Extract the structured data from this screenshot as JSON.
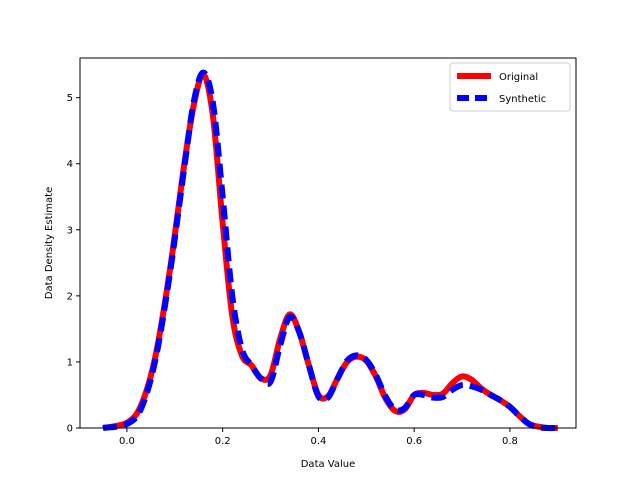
{
  "chart_data": {
    "type": "line",
    "title": "",
    "xlabel": "Data Value",
    "ylabel": "Data Density Estimate",
    "xlim": [
      -0.098,
      0.938
    ],
    "ylim": [
      0,
      5.6
    ],
    "xticks": [
      0.0,
      0.2,
      0.4,
      0.6,
      0.8
    ],
    "xtick_labels": [
      "0.0",
      "0.2",
      "0.4",
      "0.6",
      "0.8"
    ],
    "yticks": [
      0,
      1,
      2,
      3,
      4,
      5
    ],
    "ytick_labels": [
      "0",
      "1",
      "2",
      "3",
      "4",
      "5"
    ],
    "grid": false,
    "legend": {
      "position": "top-right"
    },
    "series": [
      {
        "name": "Original",
        "color": "#ff0000",
        "style": "solid",
        "x": [
          -0.05,
          0.0,
          0.03,
          0.06,
          0.09,
          0.12,
          0.14,
          0.16,
          0.18,
          0.2,
          0.22,
          0.24,
          0.26,
          0.28,
          0.3,
          0.32,
          0.34,
          0.36,
          0.38,
          0.4,
          0.42,
          0.44,
          0.46,
          0.48,
          0.5,
          0.52,
          0.54,
          0.56,
          0.58,
          0.6,
          0.62,
          0.64,
          0.66,
          0.68,
          0.7,
          0.72,
          0.74,
          0.76,
          0.78,
          0.8,
          0.82,
          0.84,
          0.86,
          0.88,
          0.9
        ],
        "y": [
          0.0,
          0.08,
          0.35,
          1.1,
          2.4,
          4.0,
          4.9,
          5.35,
          4.7,
          3.1,
          1.7,
          1.1,
          0.95,
          0.75,
          0.8,
          1.35,
          1.72,
          1.45,
          0.95,
          0.5,
          0.48,
          0.75,
          1.0,
          1.08,
          1.02,
          0.78,
          0.45,
          0.26,
          0.28,
          0.5,
          0.53,
          0.5,
          0.52,
          0.68,
          0.78,
          0.73,
          0.6,
          0.5,
          0.42,
          0.32,
          0.18,
          0.06,
          0.02,
          0.0,
          0.0
        ]
      },
      {
        "name": "Synthetic",
        "color": "#0000ff",
        "style": "dashed",
        "x": [
          -0.05,
          0.0,
          0.03,
          0.06,
          0.09,
          0.12,
          0.14,
          0.16,
          0.18,
          0.2,
          0.22,
          0.24,
          0.26,
          0.28,
          0.3,
          0.32,
          0.34,
          0.36,
          0.38,
          0.4,
          0.42,
          0.44,
          0.46,
          0.48,
          0.5,
          0.52,
          0.54,
          0.56,
          0.58,
          0.6,
          0.62,
          0.64,
          0.66,
          0.68,
          0.7,
          0.72,
          0.74,
          0.76,
          0.78,
          0.8,
          0.82,
          0.84,
          0.86,
          0.88,
          0.9
        ],
        "y": [
          0.0,
          0.06,
          0.3,
          1.05,
          2.35,
          3.95,
          4.95,
          5.38,
          4.9,
          3.5,
          2.0,
          1.2,
          0.95,
          0.75,
          0.7,
          1.25,
          1.68,
          1.45,
          0.95,
          0.48,
          0.46,
          0.75,
          1.02,
          1.1,
          1.03,
          0.8,
          0.48,
          0.28,
          0.3,
          0.5,
          0.5,
          0.46,
          0.47,
          0.58,
          0.65,
          0.63,
          0.58,
          0.5,
          0.42,
          0.32,
          0.18,
          0.06,
          0.01,
          0.0,
          0.0
        ]
      }
    ]
  }
}
